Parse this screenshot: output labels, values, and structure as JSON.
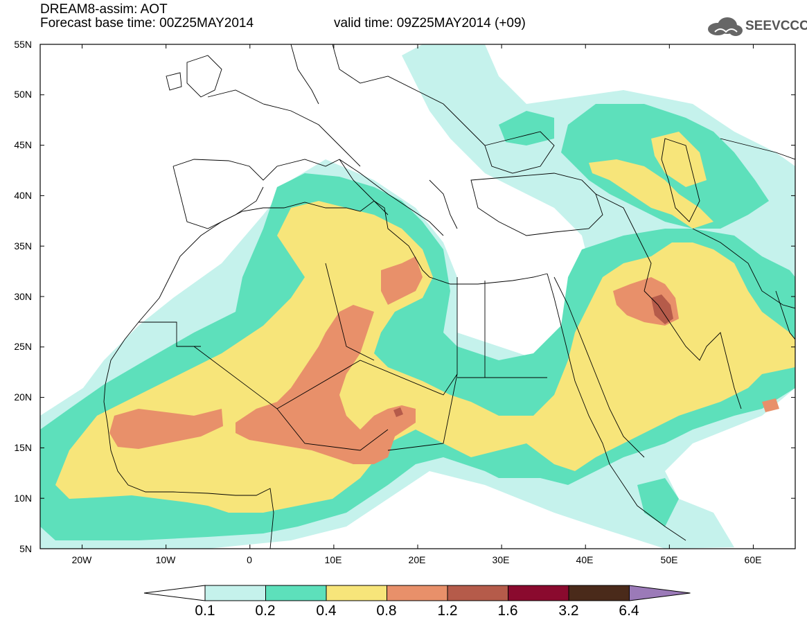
{
  "header": {
    "title_line1": "DREAM8-assim: AOT",
    "title_line2_left": "Forecast base time: 00Z25MAY2014",
    "title_line2_right": "valid time: 09Z25MAY2014 (+09)",
    "logo_text": "SEEVCCC"
  },
  "axes": {
    "lat_labels": [
      "55N",
      "50N",
      "45N",
      "40N",
      "35N",
      "30N",
      "25N",
      "20N",
      "15N",
      "10N",
      "5N"
    ],
    "lon_labels": [
      "20W",
      "10W",
      "0",
      "10E",
      "20E",
      "30E",
      "40E",
      "50E",
      "60E"
    ]
  },
  "colorbar": {
    "labels": [
      "0.1",
      "0.2",
      "0.4",
      "0.8",
      "1.2",
      "1.6",
      "3.2",
      "6.4"
    ],
    "colors": [
      "#ffffff",
      "#c5f2ec",
      "#5de0bb",
      "#f7e57a",
      "#e8906a",
      "#b55b4a",
      "#8a0a2e",
      "#4a2a1a",
      "#9b7ab8"
    ]
  },
  "map": {
    "lon_range": [
      -25,
      65
    ],
    "lat_range": [
      5,
      55
    ],
    "level_colors": {
      "l01": "#c5f2ec",
      "l02": "#5de0bb",
      "l04": "#f7e57a",
      "l08": "#e8906a",
      "l12": "#b55b4a"
    }
  }
}
